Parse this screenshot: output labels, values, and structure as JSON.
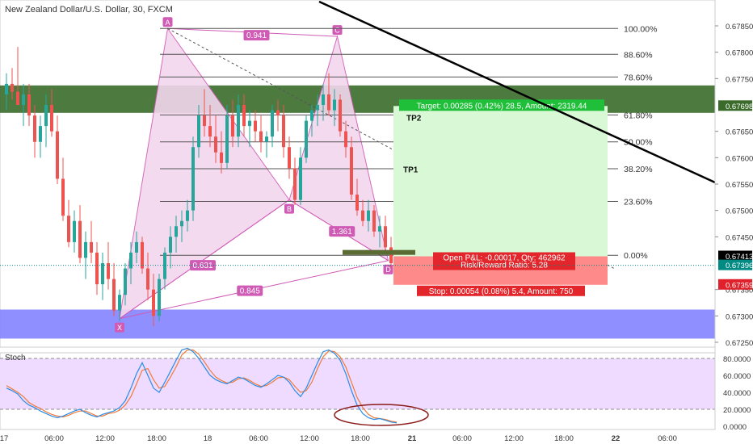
{
  "header": {
    "symbol_title": "New Zealand Dollar/U.S. Dollar, 30, FXCM"
  },
  "stoch_panel": {
    "title": "Stoch"
  },
  "colors": {
    "up": "#26a69a",
    "down": "#ef5350",
    "pattern": "#d05bb5",
    "pattern_fill": "#f3d7ee",
    "resistance_zone": "#3a6b2a",
    "support_zone": "#7b7bff",
    "profit_zone": "#d9f9d6",
    "loss_zone": "#ff8a8a",
    "stoch_k": "#2b8ce6",
    "stoch_d": "#f07a3a",
    "stoch_bg": "#eedbff",
    "trendline": "#000000",
    "price_tag_dark": "#000000",
    "price_tag_teal": "#008a84",
    "price_tag_red": "#e0202a",
    "fib_line": "#555555"
  },
  "chart_data": {
    "type": "candlestick",
    "title": "New Zealand Dollar/U.S. Dollar, 30, FXCM",
    "price_range": [
      0.6725,
      0.6786
    ],
    "y_ticks": [
      "0.67850",
      "0.67800",
      "0.67750",
      "0.67650",
      "0.67600",
      "0.67550",
      "0.67500",
      "0.67450",
      "0.67350",
      "0.67300",
      "0.67250"
    ],
    "price_tags": [
      {
        "label": "0.67698",
        "value": 0.67698,
        "style": "resistance"
      },
      {
        "label": "0.67413",
        "value": 0.67413,
        "style": "dark"
      },
      {
        "label": "0.67396",
        "value": 0.67396,
        "style": "teal"
      },
      {
        "label": "0.67359",
        "value": 0.67359,
        "style": "red"
      }
    ],
    "x_ticks": [
      "17",
      "06:00",
      "12:00",
      "18:00",
      "18",
      "06:00",
      "12:00",
      "18:00",
      "21",
      "06:00",
      "12:00",
      "18:00",
      "22",
      "06:00"
    ],
    "candles": [
      [
        0.6772,
        0.6776,
        0.6769,
        0.6774
      ],
      [
        0.6774,
        0.6777,
        0.6771,
        0.67725
      ],
      [
        0.67725,
        0.6781,
        0.677,
        0.677
      ],
      [
        0.677,
        0.6774,
        0.6766,
        0.6772
      ],
      [
        0.6772,
        0.6774,
        0.6766,
        0.6768
      ],
      [
        0.6768,
        0.677,
        0.676,
        0.6763
      ],
      [
        0.6763,
        0.6768,
        0.676,
        0.6766
      ],
      [
        0.6766,
        0.6772,
        0.6762,
        0.677
      ],
      [
        0.677,
        0.6773,
        0.6764,
        0.6765
      ],
      [
        0.6765,
        0.6768,
        0.6755,
        0.6756
      ],
      [
        0.6756,
        0.676,
        0.6748,
        0.6749
      ],
      [
        0.6749,
        0.6752,
        0.6743,
        0.6744
      ],
      [
        0.6744,
        0.675,
        0.6742,
        0.6748
      ],
      [
        0.6748,
        0.6751,
        0.674,
        0.6741
      ],
      [
        0.6741,
        0.6746,
        0.6737,
        0.6744
      ],
      [
        0.6744,
        0.6748,
        0.674,
        0.6742
      ],
      [
        0.6742,
        0.6744,
        0.6734,
        0.6736
      ],
      [
        0.6736,
        0.6742,
        0.6733,
        0.674
      ],
      [
        0.674,
        0.6744,
        0.6735,
        0.6737
      ],
      [
        0.6737,
        0.674,
        0.673,
        0.6731
      ],
      [
        0.6731,
        0.6735,
        0.6729,
        0.6734
      ],
      [
        0.6734,
        0.674,
        0.6732,
        0.6739
      ],
      [
        0.6739,
        0.6744,
        0.6736,
        0.6742
      ],
      [
        0.6742,
        0.6746,
        0.674,
        0.6744
      ],
      [
        0.6744,
        0.6745,
        0.6738,
        0.6739
      ],
      [
        0.6739,
        0.6742,
        0.6733,
        0.6735
      ],
      [
        0.6735,
        0.6738,
        0.6728,
        0.673
      ],
      [
        0.673,
        0.6738,
        0.6729,
        0.6737
      ],
      [
        0.6737,
        0.6743,
        0.6735,
        0.6742
      ],
      [
        0.6742,
        0.6747,
        0.6739,
        0.6745
      ],
      [
        0.6745,
        0.6749,
        0.6742,
        0.6747
      ],
      [
        0.6747,
        0.675,
        0.6744,
        0.6748
      ],
      [
        0.6748,
        0.6752,
        0.6746,
        0.675
      ],
      [
        0.675,
        0.6764,
        0.6748,
        0.6762
      ],
      [
        0.6762,
        0.677,
        0.676,
        0.6768
      ],
      [
        0.6768,
        0.6773,
        0.6764,
        0.6766
      ],
      [
        0.6766,
        0.677,
        0.6762,
        0.6764
      ],
      [
        0.6764,
        0.6768,
        0.6759,
        0.6761
      ],
      [
        0.6761,
        0.6765,
        0.6757,
        0.6759
      ],
      [
        0.6759,
        0.677,
        0.6758,
        0.6768
      ],
      [
        0.6768,
        0.6771,
        0.6762,
        0.6764
      ],
      [
        0.6764,
        0.6772,
        0.6762,
        0.677
      ],
      [
        0.677,
        0.6772,
        0.6764,
        0.6766
      ],
      [
        0.6766,
        0.6769,
        0.6762,
        0.6767
      ],
      [
        0.6767,
        0.6769,
        0.6763,
        0.6765
      ],
      [
        0.6765,
        0.6768,
        0.6761,
        0.6763
      ],
      [
        0.6763,
        0.6765,
        0.676,
        0.6764
      ],
      [
        0.6764,
        0.677,
        0.6762,
        0.6769
      ],
      [
        0.6769,
        0.6771,
        0.6765,
        0.6768
      ],
      [
        0.6768,
        0.677,
        0.676,
        0.6762
      ],
      [
        0.6762,
        0.6764,
        0.6756,
        0.6758
      ],
      [
        0.6758,
        0.676,
        0.6751,
        0.6752
      ],
      [
        0.6752,
        0.6762,
        0.6751,
        0.676
      ],
      [
        0.676,
        0.6768,
        0.6759,
        0.6767
      ],
      [
        0.6767,
        0.677,
        0.6764,
        0.6769
      ],
      [
        0.6769,
        0.6772,
        0.6766,
        0.677
      ],
      [
        0.677,
        0.6774,
        0.6767,
        0.6772
      ],
      [
        0.6772,
        0.6776,
        0.6768,
        0.6769
      ],
      [
        0.6769,
        0.6773,
        0.6766,
        0.6771
      ],
      [
        0.6771,
        0.6772,
        0.6764,
        0.6765
      ],
      [
        0.6765,
        0.6767,
        0.676,
        0.6762
      ],
      [
        0.6762,
        0.6764,
        0.6752,
        0.6753
      ],
      [
        0.6753,
        0.6756,
        0.6749,
        0.675
      ],
      [
        0.675,
        0.6752,
        0.6747,
        0.6748
      ],
      [
        0.6748,
        0.6752,
        0.6746,
        0.675
      ],
      [
        0.675,
        0.6751,
        0.6745,
        0.6746
      ],
      [
        0.6746,
        0.6749,
        0.6743,
        0.6747
      ],
      [
        0.6747,
        0.6749,
        0.6742,
        0.6743
      ],
      [
        0.6743,
        0.6745,
        0.6739,
        0.674
      ],
      [
        0.674,
        0.6742,
        0.6738,
        0.67396
      ]
    ],
    "fib_levels": [
      {
        "label": "100.00%",
        "value": 0.67845
      },
      {
        "label": "88.60%",
        "value": 0.67796
      },
      {
        "label": "78.60%",
        "value": 0.67753
      },
      {
        "label": "61.80%",
        "value": 0.67681
      },
      {
        "label": "50.00%",
        "value": 0.6763
      },
      {
        "label": "38.20%",
        "value": 0.67579
      },
      {
        "label": "23.60%",
        "value": 0.67517
      },
      {
        "label": "0.00%",
        "value": 0.67415
      }
    ],
    "pattern_points": [
      {
        "label": "X",
        "price": 0.67295
      },
      {
        "label": "A",
        "price": 0.67845
      },
      {
        "label": "B",
        "price": 0.6752
      },
      {
        "label": "C",
        "price": 0.6783
      },
      {
        "label": "D",
        "price": 0.67405
      }
    ],
    "pattern_ratios": [
      "0.941",
      "0.631",
      "0.845",
      "1.361"
    ],
    "trade": {
      "target_text": "Target: 0.00285 (0.42%) 28.5, Amount: 2319.44",
      "open_text": "Open P&L: -0.00017, Qty: 462962",
      "rr_text": "Risk/Reward Ratio: 5.28",
      "stop_text": "Stop: 0.00054 (0.08%) 5.4, Amount: 750",
      "tp1": "TP1",
      "tp2": "TP2"
    },
    "stochastic": {
      "y_ticks": [
        "80.0000",
        "60.0000",
        "40.0000",
        "20.0000",
        "0.0000"
      ],
      "overbought": 80,
      "oversold": 20,
      "k": [
        45,
        42,
        38,
        30,
        25,
        22,
        18,
        15,
        12,
        10,
        12,
        15,
        18,
        20,
        16,
        13,
        11,
        14,
        16,
        18,
        22,
        30,
        45,
        62,
        75,
        60,
        45,
        40,
        52,
        65,
        78,
        90,
        92,
        88,
        80,
        70,
        60,
        55,
        52,
        50,
        54,
        58,
        56,
        52,
        48,
        46,
        50,
        55,
        60,
        58,
        52,
        42,
        35,
        45,
        60,
        75,
        88,
        90,
        86,
        78,
        62,
        42,
        25,
        15,
        10,
        8,
        9,
        7,
        5,
        4
      ],
      "d": [
        48,
        44,
        40,
        35,
        28,
        24,
        21,
        17,
        14,
        12,
        11,
        13,
        16,
        18,
        18,
        15,
        12,
        12,
        15,
        16,
        19,
        25,
        35,
        50,
        66,
        68,
        55,
        45,
        47,
        58,
        70,
        84,
        90,
        90,
        85,
        76,
        66,
        58,
        54,
        51,
        52,
        56,
        57,
        54,
        50,
        47,
        48,
        52,
        57,
        58,
        55,
        47,
        40,
        42,
        52,
        68,
        82,
        89,
        88,
        82,
        70,
        52,
        34,
        22,
        14,
        10,
        9,
        8,
        6,
        5
      ]
    }
  }
}
